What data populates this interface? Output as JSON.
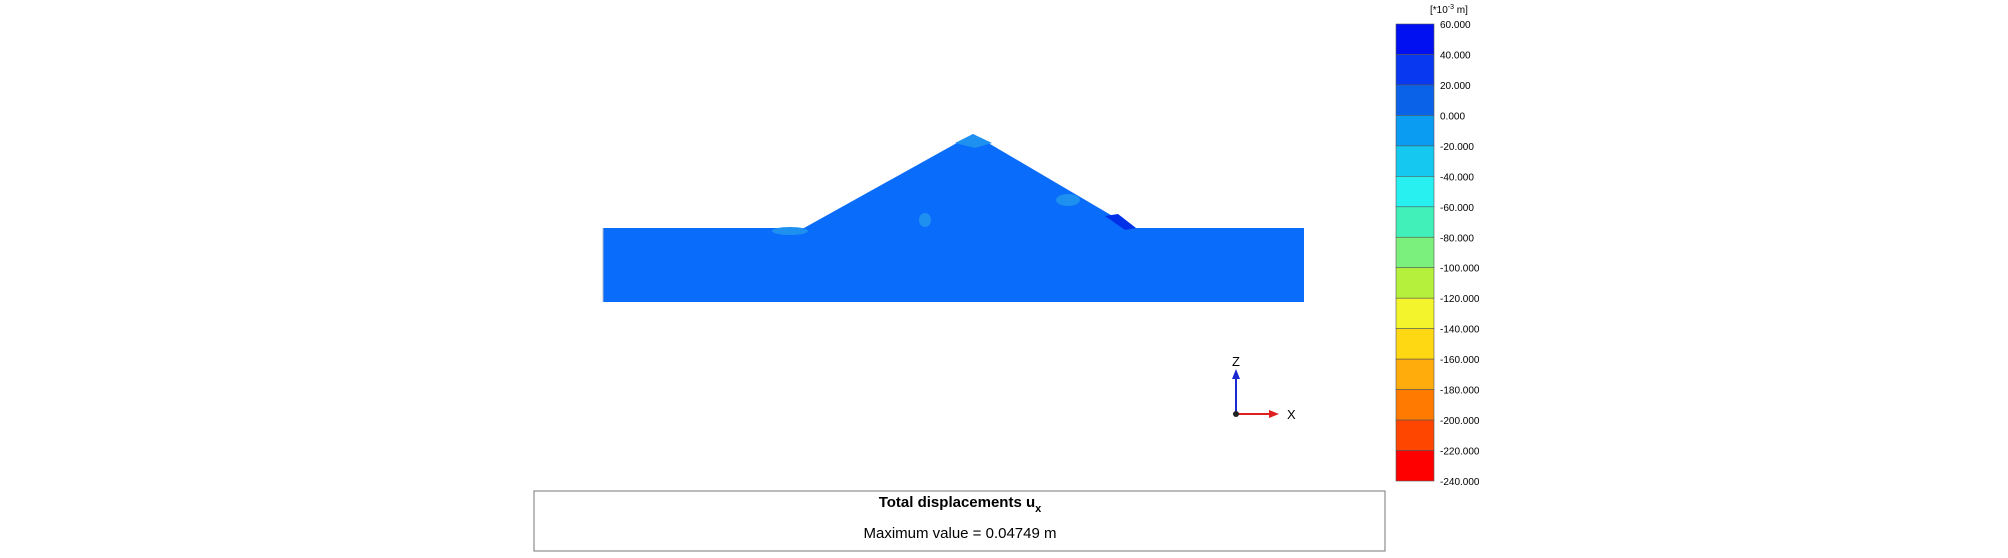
{
  "legend": {
    "unit": {
      "prefix": "[*10",
      "exponent": "-3",
      "suffix": " m]"
    },
    "labels": [
      "60.000",
      "40.000",
      "20.000",
      "0.000",
      "-20.000",
      "-40.000",
      "-60.000",
      "-80.000",
      "-100.000",
      "-120.000",
      "-140.000",
      "-160.000",
      "-180.000",
      "-200.000",
      "-220.000",
      "-240.000"
    ],
    "colors": [
      "#0010f0",
      "#0838f0",
      "#0a62e8",
      "#0a9cf2",
      "#14c8f0",
      "#28f0f0",
      "#40f0b8",
      "#7cf07c",
      "#b4f03c",
      "#f4f42c",
      "#ffd814",
      "#ffac0c",
      "#ff7a00",
      "#ff4600",
      "#ff0000"
    ]
  },
  "axes": {
    "z": "Z",
    "x": "X"
  },
  "footer": {
    "title": "Total displacements u",
    "title_subscript": "x",
    "max_value": "Maximum value = 0.04749 m"
  }
}
